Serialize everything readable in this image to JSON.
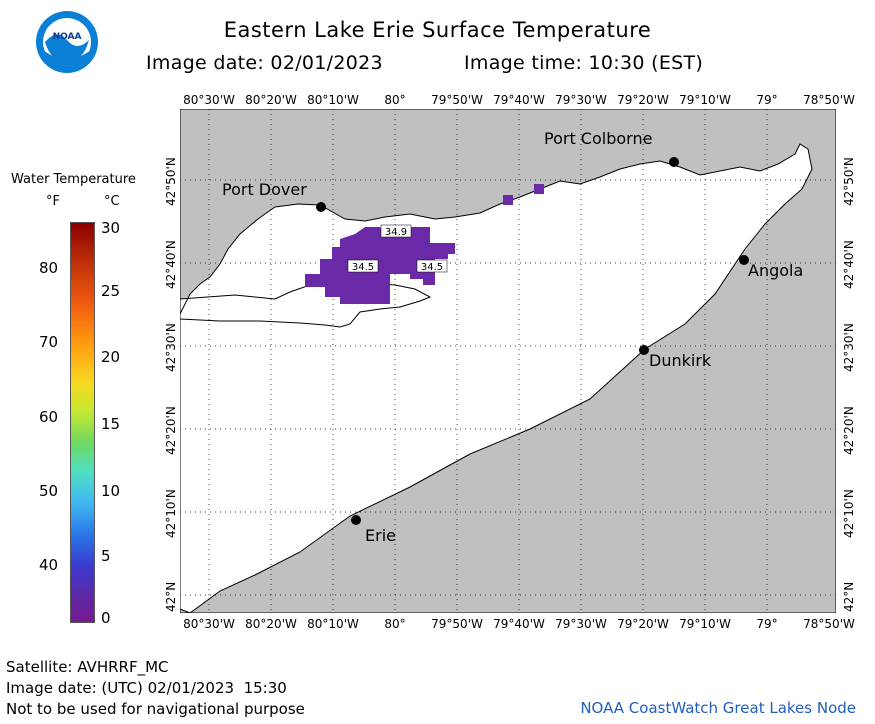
{
  "title": "Eastern Lake Erie Surface Temperature",
  "image_date_label": "Image date: 02/01/2023",
  "image_time_label": "Image time: 10:30 (EST)",
  "logo_text": "NOAA",
  "legend": {
    "title": "Water Temperature",
    "unit_f": "°F",
    "unit_c": "°C",
    "f_ticks": [
      "80",
      "70",
      "60",
      "50",
      "40"
    ],
    "c_ticks": [
      "30",
      "25",
      "20",
      "15",
      "10",
      "5",
      "0"
    ]
  },
  "lon_labels": [
    "80°30'W",
    "80°20'W",
    "80°10'W",
    "80°",
    "79°50'W",
    "79°40'W",
    "79°30'W",
    "79°20'W",
    "79°10'W",
    "79°",
    "78°50'W"
  ],
  "lat_labels": [
    "42°50'N",
    "42°40'N",
    "42°30'N",
    "42°20'N",
    "42°10'N",
    "42°N"
  ],
  "cities": [
    "Port Colborne",
    "Port Dover",
    "Angola",
    "Dunkirk",
    "Erie"
  ],
  "temperature_labels": [
    "34.9",
    "34.5",
    "34.5"
  ],
  "footer": {
    "satellite": "Satellite: AVHRRF_MC",
    "utc": "Image date: (UTC) 02/01/2023  15:30",
    "disclaimer": "Not to be used for navigational purpose",
    "credit": "NOAA CoastWatch Great Lakes Node"
  },
  "colors": {
    "land": "#c0c0c0",
    "water": "#ffffff",
    "warm_patch": "#6a2aa8",
    "credit": "#1f5fbf"
  }
}
